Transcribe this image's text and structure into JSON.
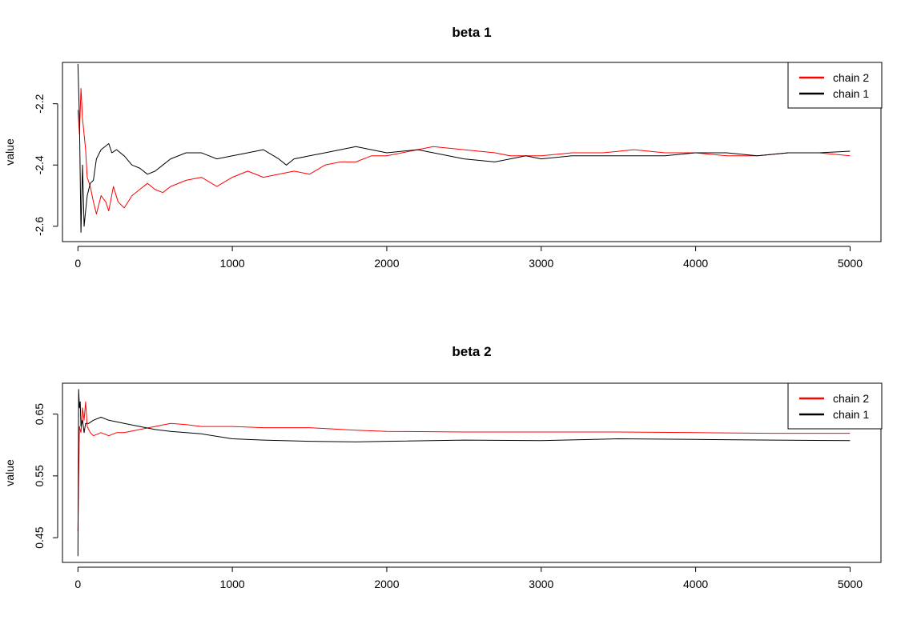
{
  "chart_data": [
    {
      "type": "line",
      "title": "beta 1",
      "xlabel": "",
      "ylabel": "value",
      "xlim": [
        -100,
        5200
      ],
      "ylim": [
        -2.65,
        -2.065
      ],
      "xticks": [
        0,
        1000,
        2000,
        3000,
        4000,
        5000
      ],
      "yticks": [
        -2.6,
        -2.4,
        -2.2
      ],
      "ytick_labels": [
        "-2.6",
        "-2.4",
        "-2.2"
      ],
      "legend": {
        "position": "top-right"
      },
      "series": [
        {
          "name": "chain 2",
          "color": "#ff0000",
          "x": [
            0,
            10,
            20,
            30,
            40,
            50,
            60,
            80,
            100,
            120,
            150,
            180,
            200,
            230,
            260,
            300,
            350,
            400,
            450,
            500,
            550,
            600,
            700,
            800,
            900,
            1000,
            1100,
            1200,
            1300,
            1400,
            1500,
            1600,
            1700,
            1800,
            1900,
            2000,
            2200,
            2300,
            2500,
            2700,
            2800,
            3000,
            3200,
            3400,
            3600,
            3800,
            4000,
            4200,
            4400,
            4600,
            4800,
            5000
          ],
          "y": [
            -2.22,
            -2.3,
            -2.15,
            -2.25,
            -2.3,
            -2.35,
            -2.44,
            -2.47,
            -2.52,
            -2.56,
            -2.5,
            -2.52,
            -2.55,
            -2.47,
            -2.52,
            -2.54,
            -2.5,
            -2.48,
            -2.46,
            -2.48,
            -2.49,
            -2.47,
            -2.45,
            -2.44,
            -2.47,
            -2.44,
            -2.42,
            -2.44,
            -2.43,
            -2.42,
            -2.43,
            -2.4,
            -2.39,
            -2.39,
            -2.37,
            -2.37,
            -2.35,
            -2.34,
            -2.35,
            -2.36,
            -2.37,
            -2.37,
            -2.36,
            -2.36,
            -2.35,
            -2.36,
            -2.36,
            -2.37,
            -2.37,
            -2.36,
            -2.36,
            -2.37
          ]
        },
        {
          "name": "chain 1",
          "color": "#000000",
          "x": [
            0,
            10,
            20,
            30,
            40,
            50,
            60,
            70,
            80,
            100,
            120,
            150,
            200,
            220,
            250,
            300,
            350,
            400,
            450,
            500,
            550,
            600,
            700,
            800,
            900,
            1000,
            1100,
            1200,
            1300,
            1350,
            1400,
            1500,
            1600,
            1700,
            1800,
            1900,
            2000,
            2200,
            2400,
            2500,
            2700,
            2800,
            2900,
            3000,
            3200,
            3400,
            3600,
            3800,
            4000,
            4200,
            4400,
            4600,
            4800,
            5000
          ],
          "y": [
            -2.07,
            -2.25,
            -2.62,
            -2.4,
            -2.6,
            -2.55,
            -2.5,
            -2.48,
            -2.46,
            -2.45,
            -2.38,
            -2.35,
            -2.33,
            -2.36,
            -2.35,
            -2.37,
            -2.4,
            -2.41,
            -2.43,
            -2.42,
            -2.4,
            -2.38,
            -2.36,
            -2.36,
            -2.38,
            -2.37,
            -2.36,
            -2.35,
            -2.38,
            -2.4,
            -2.38,
            -2.37,
            -2.36,
            -2.35,
            -2.34,
            -2.35,
            -2.36,
            -2.35,
            -2.37,
            -2.38,
            -2.39,
            -2.38,
            -2.37,
            -2.38,
            -2.37,
            -2.37,
            -2.37,
            -2.37,
            -2.36,
            -2.36,
            -2.37,
            -2.36,
            -2.36,
            -2.355
          ]
        }
      ]
    },
    {
      "type": "line",
      "title": "beta 2",
      "xlabel": "",
      "ylabel": "value",
      "xlim": [
        -100,
        5200
      ],
      "ylim": [
        0.41,
        0.7
      ],
      "xticks": [
        0,
        1000,
        2000,
        3000,
        4000,
        5000
      ],
      "yticks": [
        0.45,
        0.55,
        0.65
      ],
      "ytick_labels": [
        "0.45",
        "0.55",
        "0.65"
      ],
      "legend": {
        "position": "top-right"
      },
      "series": [
        {
          "name": "chain 2",
          "color": "#ff0000",
          "x": [
            0,
            5,
            10,
            20,
            30,
            40,
            50,
            60,
            80,
            100,
            150,
            200,
            250,
            300,
            400,
            500,
            600,
            700,
            800,
            1000,
            1200,
            1500,
            1800,
            2000,
            2500,
            3000,
            3500,
            4000,
            4500,
            5000
          ],
          "y": [
            0.46,
            0.55,
            0.63,
            0.62,
            0.66,
            0.64,
            0.67,
            0.63,
            0.62,
            0.615,
            0.62,
            0.615,
            0.62,
            0.62,
            0.625,
            0.63,
            0.635,
            0.633,
            0.63,
            0.63,
            0.628,
            0.628,
            0.624,
            0.622,
            0.621,
            0.621,
            0.621,
            0.62,
            0.619,
            0.619
          ]
        },
        {
          "name": "chain 1",
          "color": "#000000",
          "x": [
            0,
            5,
            10,
            15,
            20,
            30,
            40,
            50,
            70,
            100,
            150,
            200,
            300,
            400,
            500,
            600,
            800,
            1000,
            1200,
            1500,
            1800,
            2000,
            2500,
            3000,
            3500,
            4000,
            4500,
            5000
          ],
          "y": [
            0.42,
            0.69,
            0.66,
            0.67,
            0.63,
            0.64,
            0.62,
            0.635,
            0.635,
            0.64,
            0.645,
            0.64,
            0.635,
            0.63,
            0.625,
            0.622,
            0.618,
            0.61,
            0.608,
            0.606,
            0.605,
            0.606,
            0.608,
            0.607,
            0.61,
            0.609,
            0.608,
            0.607
          ]
        }
      ]
    }
  ]
}
